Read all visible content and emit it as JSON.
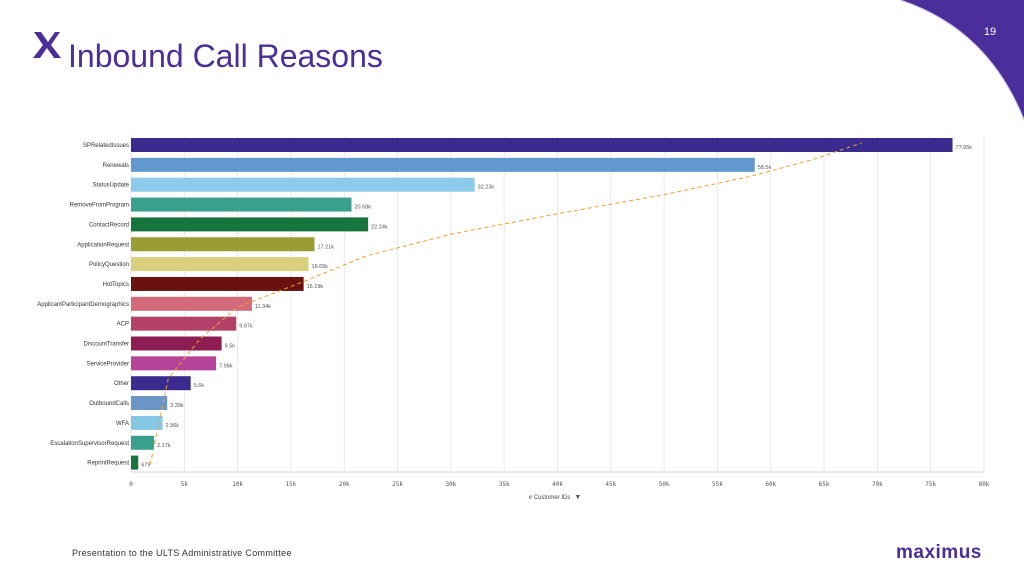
{
  "page": {
    "number": "19",
    "title": "Inbound Call Reasons",
    "footer": "Presentation to the ULTS Administrative Committee",
    "brand": "maximus"
  },
  "colors": {
    "brand_purple": "#4b2e9a",
    "pareto_line": "#f0a030"
  },
  "icons": {
    "logo": "x-logo-icon",
    "sort": "caret-down-icon"
  },
  "chart_data": {
    "type": "bar",
    "orientation": "horizontal",
    "xlabel": "# Customer IDs",
    "xlim": [
      0,
      80000
    ],
    "xticks": [
      0,
      5000,
      10000,
      15000,
      20000,
      25000,
      30000,
      35000,
      40000,
      45000,
      50000,
      55000,
      60000,
      65000,
      70000,
      75000,
      80000
    ],
    "xtick_labels": [
      "0",
      "5k",
      "10k",
      "15k",
      "20k",
      "25k",
      "30k",
      "35k",
      "40k",
      "45k",
      "50k",
      "55k",
      "60k",
      "65k",
      "70k",
      "75k",
      "80k"
    ],
    "grid": true,
    "categories": [
      "SPRelatedIssues",
      "Renewals",
      "StatusUpdate",
      "RemoveFromProgram",
      "ContactRecord",
      "ApplicationRequest",
      "PolicyQuestion",
      "HotTopics",
      "ApplicantParticipantDemographics",
      "ACP",
      "DiscountTransfer",
      "ServiceProvider",
      "Other",
      "OutboundCalls",
      "WFA",
      "EscalationSupervisorRequest",
      "ReprintRequest"
    ],
    "values": [
      77050,
      58500,
      32230,
      20680,
      22240,
      17210,
      16650,
      16190,
      11340,
      9870,
      8500,
      7980,
      5600,
      3390,
      2960,
      2170,
      679
    ],
    "value_labels": [
      "77.05k",
      "58.5k",
      "32.23k",
      "20.68k",
      "22.24k",
      "17.21k",
      "16.65k",
      "16.19k",
      "11.34k",
      "9.87k",
      "8.5k",
      "7.98k",
      "5.6k",
      "3.39k",
      "2.96k",
      "2.17k",
      "679"
    ],
    "bar_colors": [
      "#3a2c8f",
      "#6199cf",
      "#8ccbe9",
      "#3aa08e",
      "#15753c",
      "#9a9e32",
      "#dacf7c",
      "#6a1111",
      "#d26a7a",
      "#b44169",
      "#8d1e54",
      "#b54499",
      "#3a2c8f",
      "#6b95c7",
      "#87c7e6",
      "#3aa08e",
      "#15753c"
    ],
    "cumulative_line": {
      "style": "dashed",
      "color": "#f0a030",
      "path_values": [
        1800,
        3500,
        6500,
        10000,
        16500,
        22000,
        30000,
        40000,
        50000,
        58000,
        64000,
        68500
      ]
    }
  }
}
